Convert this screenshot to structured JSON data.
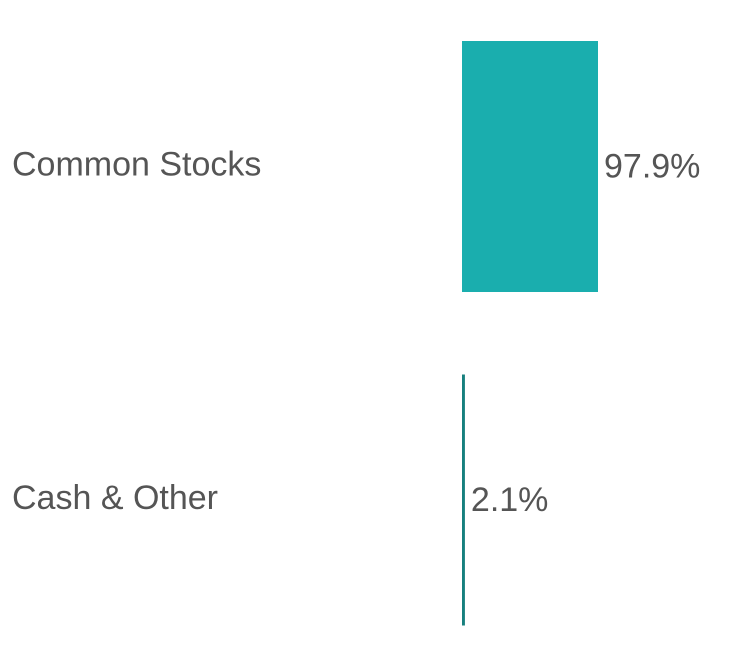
{
  "chart_data": {
    "type": "bar",
    "orientation": "horizontal",
    "categories": [
      "Common Stocks",
      "Cash & Other"
    ],
    "values": [
      97.9,
      2.1
    ],
    "value_labels": [
      "97.9%",
      "2.1%"
    ],
    "colors": [
      "#1aaeae",
      "#17807e"
    ]
  }
}
